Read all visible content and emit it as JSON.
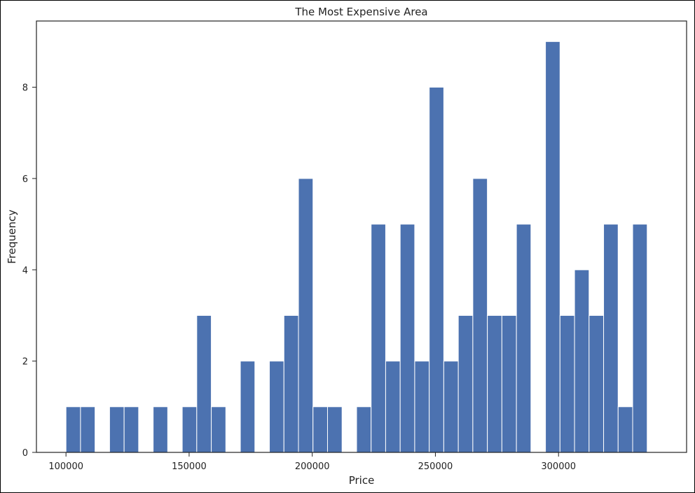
{
  "chart_data": {
    "type": "bar",
    "title": "The Most Expensive Area",
    "xlabel": "Price",
    "ylabel": "Frequency",
    "bin_start": 100000,
    "bin_width": 5900,
    "bins": 40,
    "values": [
      1,
      1,
      0,
      1,
      1,
      0,
      1,
      0,
      1,
      3,
      1,
      0,
      2,
      0,
      2,
      3,
      6,
      1,
      1,
      0,
      1,
      5,
      2,
      5,
      2,
      8,
      2,
      3,
      6,
      3,
      3,
      5,
      0,
      9,
      3,
      4,
      3,
      5,
      1,
      5
    ],
    "xlim": [
      88000,
      352000
    ],
    "ylim": [
      0,
      9.45
    ],
    "xticks": [
      100000,
      150000,
      200000,
      250000,
      300000
    ],
    "yticks": [
      0,
      2,
      4,
      6,
      8
    ],
    "bar_color": "#4c72b0",
    "grid": false
  }
}
